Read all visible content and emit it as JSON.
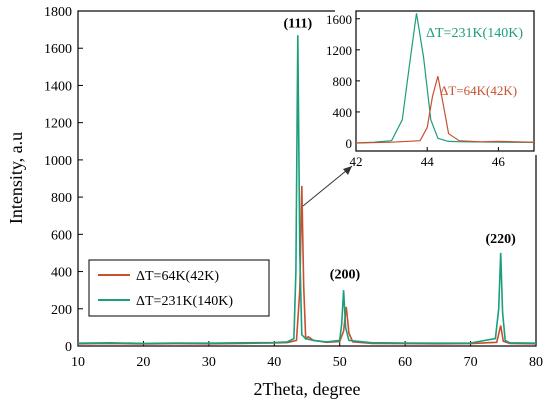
{
  "chart_data": [
    {
      "type": "line",
      "xlabel": "2Theta, degree",
      "ylabel": "Intensity, a.u",
      "xlim": [
        10,
        80
      ],
      "ylim": [
        0,
        1800
      ],
      "xticks": [
        "10",
        "20",
        "30",
        "40",
        "50",
        "60",
        "70",
        "80"
      ],
      "yticks": [
        "0",
        "200",
        "400",
        "600",
        "800",
        "1000",
        "1200",
        "1400",
        "1600",
        "1800"
      ],
      "grid": false,
      "legend_position": "lower-left",
      "peak_labels": [
        {
          "text": "(111)",
          "x": 43.6,
          "y": 1680
        },
        {
          "text": "(200)",
          "x": 50.8,
          "y": 330
        },
        {
          "text": "(220)",
          "x": 74.6,
          "y": 520
        }
      ],
      "series": [
        {
          "name": "ΔT=64K(42K)",
          "color": "#c8502e",
          "points": [
            [
              10,
              12
            ],
            [
              15,
              14
            ],
            [
              20,
              11
            ],
            [
              25,
              13
            ],
            [
              30,
              12
            ],
            [
              35,
              14
            ],
            [
              40,
              16
            ],
            [
              42,
              18
            ],
            [
              43.4,
              30
            ],
            [
              43.9,
              300
            ],
            [
              44.2,
              860
            ],
            [
              44.5,
              320
            ],
            [
              44.8,
              40
            ],
            [
              45.2,
              50
            ],
            [
              46,
              30
            ],
            [
              48,
              20
            ],
            [
              50,
              24
            ],
            [
              50.6,
              80
            ],
            [
              51,
              210
            ],
            [
              51.4,
              70
            ],
            [
              52,
              22
            ],
            [
              55,
              14
            ],
            [
              60,
              13
            ],
            [
              65,
              12
            ],
            [
              70,
              13
            ],
            [
              74,
              20
            ],
            [
              74.6,
              110
            ],
            [
              75,
              25
            ],
            [
              76,
              14
            ],
            [
              80,
              12
            ]
          ]
        },
        {
          "name": "ΔT=231K(140K)",
          "color": "#1a9e7c",
          "points": [
            [
              10,
              15
            ],
            [
              15,
              17
            ],
            [
              20,
              14
            ],
            [
              25,
              16
            ],
            [
              30,
              15
            ],
            [
              35,
              17
            ],
            [
              40,
              18
            ],
            [
              42,
              22
            ],
            [
              43,
              40
            ],
            [
              43.3,
              400
            ],
            [
              43.6,
              1670
            ],
            [
              43.9,
              500
            ],
            [
              44.2,
              60
            ],
            [
              44.8,
              40
            ],
            [
              46,
              30
            ],
            [
              48,
              22
            ],
            [
              50,
              30
            ],
            [
              50.3,
              120
            ],
            [
              50.6,
              300
            ],
            [
              50.9,
              100
            ],
            [
              51.4,
              30
            ],
            [
              55,
              17
            ],
            [
              60,
              16
            ],
            [
              65,
              15
            ],
            [
              70,
              16
            ],
            [
              73.8,
              40
            ],
            [
              74.3,
              200
            ],
            [
              74.6,
              500
            ],
            [
              74.9,
              180
            ],
            [
              75.3,
              30
            ],
            [
              76,
              17
            ],
            [
              80,
              15
            ]
          ]
        }
      ]
    },
    {
      "type": "line",
      "xlim": [
        42,
        47
      ],
      "ylim": [
        0,
        1700
      ],
      "xticks": [
        "42",
        "44",
        "46"
      ],
      "yticks": [
        "0",
        "400",
        "800",
        "1200",
        "1600"
      ],
      "grid": false,
      "annotations": [
        {
          "text": "ΔT=231K(140K)",
          "color": "#1a9e7c"
        },
        {
          "text": "ΔT=64K(42K)",
          "color": "#c8502e"
        }
      ],
      "series": [
        {
          "name": "ΔT=231K(140K)",
          "color": "#1a9e7c",
          "points": [
            [
              42,
              0
            ],
            [
              42.5,
              10
            ],
            [
              43,
              30
            ],
            [
              43.3,
              300
            ],
            [
              43.5,
              1000
            ],
            [
              43.7,
              1670
            ],
            [
              43.9,
              1100
            ],
            [
              44.1,
              300
            ],
            [
              44.3,
              60
            ],
            [
              44.6,
              20
            ],
            [
              45,
              15
            ],
            [
              46,
              10
            ],
            [
              47,
              8
            ]
          ]
        },
        {
          "name": "ΔT=64K(42K)",
          "color": "#c8502e",
          "points": [
            [
              42,
              0
            ],
            [
              43,
              10
            ],
            [
              43.8,
              30
            ],
            [
              44,
              200
            ],
            [
              44.15,
              600
            ],
            [
              44.3,
              860
            ],
            [
              44.45,
              500
            ],
            [
              44.6,
              120
            ],
            [
              44.9,
              30
            ],
            [
              45.5,
              15
            ],
            [
              46,
              20
            ],
            [
              46.5,
              15
            ],
            [
              47,
              10
            ]
          ]
        }
      ]
    }
  ]
}
